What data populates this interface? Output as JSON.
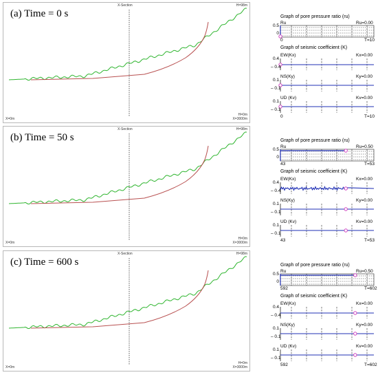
{
  "common": {
    "x_section_label": "X-Section",
    "top_right_label": "H=98m",
    "bottom_left_label": "X=0m",
    "bottom_right_h_label": "H=0m",
    "bottom_right_x_label": "X=3000m",
    "pore_title": "Graph of pore pressure ratio (ru)",
    "pore_ylabel": "Ru",
    "pore_ticks": [
      "0.5",
      "0"
    ],
    "seismic_title": "Graph of seismic coefficient (K)",
    "ew_label": "EW(Kx)",
    "ns_label": "NS(Ky)",
    "ud_label": "UD (Kv)",
    "ew_ticks": [
      "0.4",
      "– 0.4"
    ],
    "ns_ticks": [
      "0.1",
      "– 0.1"
    ],
    "ud_ticks": [
      "0.1",
      "– 0.1"
    ],
    "colors": {
      "ground_surface": "#2fb52f",
      "slip_surface": "#b85050",
      "graph_series": "#1f2fb5",
      "marker": "#d040c0"
    }
  },
  "panels": [
    {
      "title": "(a) Time = 0 s",
      "ru_value": "Ru=0.00",
      "kx_value": "Kx=0.00",
      "ky_value": "Ky=0.00",
      "kv_value": "Kv=0.00",
      "t_start": "0",
      "t_end": "T=10",
      "marker_position": 0.0,
      "ew_noise": false
    },
    {
      "title": "(b) Time = 50 s",
      "ru_value": "Ru=0.50",
      "kx_value": "Kx=0.00",
      "ky_value": "Ky=0.00",
      "kv_value": "Kv=0.00",
      "t_start": "43",
      "t_end": "T=53",
      "marker_position": 0.7,
      "ew_noise": true
    },
    {
      "title": "(c) Time = 600 s",
      "ru_value": "Ru=0.50",
      "kx_value": "Kx=0.00",
      "ky_value": "Ky=0.00",
      "kv_value": "Kv=0.00",
      "t_start": "592",
      "t_end": "T=602",
      "marker_position": 0.8,
      "ew_noise": false
    }
  ]
}
